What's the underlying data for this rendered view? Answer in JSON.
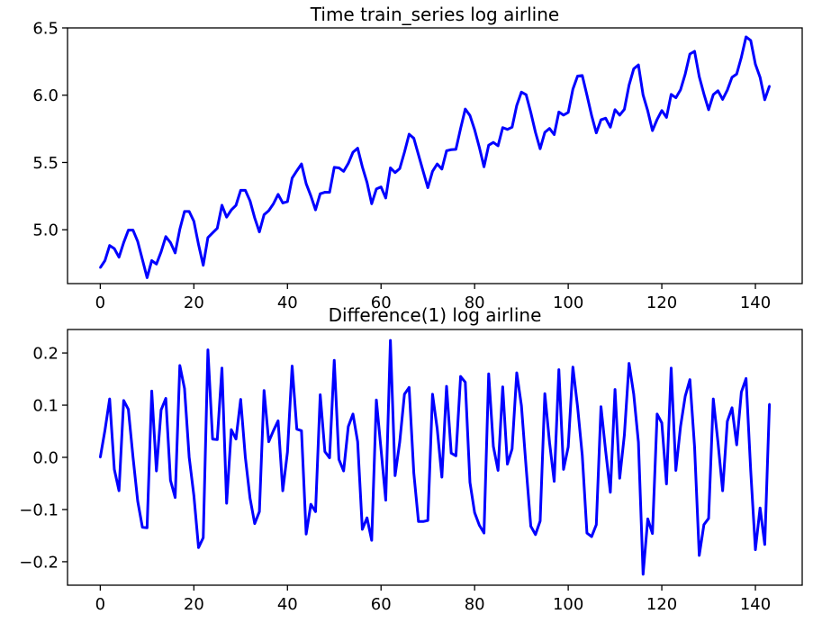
{
  "chart_data": [
    {
      "type": "line",
      "title": "Time train_series log airline",
      "xlabel": "",
      "ylabel": "",
      "xlim": [
        -7,
        150
      ],
      "ylim": [
        4.6,
        6.5
      ],
      "xticks": [
        0,
        20,
        40,
        60,
        80,
        100,
        120,
        140
      ],
      "yticks": [
        5.0,
        5.5,
        6.0,
        6.5
      ],
      "ytick_labels": [
        "5.0",
        "5.5",
        "6.0",
        "6.5"
      ],
      "grid": false,
      "color": "#0000ff",
      "series": [
        {
          "x": [
            0,
            1,
            2,
            3,
            4,
            5,
            6,
            7,
            8,
            9,
            10,
            11,
            12,
            13,
            14,
            15,
            16,
            17,
            18,
            19,
            20,
            21,
            22,
            23,
            24,
            25,
            26,
            27,
            28,
            29,
            30,
            31,
            32,
            33,
            34,
            35,
            36,
            37,
            38,
            39,
            40,
            41,
            42,
            43,
            44,
            45,
            46,
            47,
            48,
            49,
            50,
            51,
            52,
            53,
            54,
            55,
            56,
            57,
            58,
            59,
            60,
            61,
            62,
            63,
            64,
            65,
            66,
            67,
            68,
            69,
            70,
            71,
            72,
            73,
            74,
            75,
            76,
            77,
            78,
            79,
            80,
            81,
            82,
            83,
            84,
            85,
            86,
            87,
            88,
            89,
            90,
            91,
            92,
            93,
            94,
            95,
            96,
            97,
            98,
            99,
            100,
            101,
            102,
            103,
            104,
            105,
            106,
            107,
            108,
            109,
            110,
            111,
            112,
            113,
            114,
            115,
            116,
            117,
            118,
            119,
            120,
            121,
            122,
            123,
            124,
            125,
            126,
            127,
            128,
            129,
            130,
            131,
            132,
            133,
            134,
            135,
            136,
            137,
            138,
            139,
            140,
            141,
            142,
            143
          ],
          "values": [
            4.718,
            4.771,
            4.883,
            4.86,
            4.796,
            4.905,
            4.997,
            4.997,
            4.913,
            4.779,
            4.644,
            4.771,
            4.745,
            4.836,
            4.949,
            4.905,
            4.828,
            5.004,
            5.136,
            5.136,
            5.063,
            4.89,
            4.736,
            4.942,
            4.977,
            5.011,
            5.182,
            5.094,
            5.147,
            5.182,
            5.293,
            5.293,
            5.215,
            5.088,
            4.984,
            5.112,
            5.142,
            5.193,
            5.263,
            5.199,
            5.209,
            5.384,
            5.438,
            5.489,
            5.342,
            5.252,
            5.148,
            5.268,
            5.279,
            5.278,
            5.464,
            5.46,
            5.434,
            5.493,
            5.576,
            5.606,
            5.468,
            5.352,
            5.193,
            5.303,
            5.318,
            5.236,
            5.46,
            5.425,
            5.455,
            5.576,
            5.71,
            5.68,
            5.557,
            5.434,
            5.313,
            5.434,
            5.489,
            5.451,
            5.587,
            5.595,
            5.598,
            5.753,
            5.897,
            5.849,
            5.743,
            5.613,
            5.468,
            5.628,
            5.649,
            5.624,
            5.759,
            5.746,
            5.762,
            5.924,
            6.023,
            6.004,
            5.872,
            5.724,
            5.602,
            5.724,
            5.753,
            5.707,
            5.875,
            5.852,
            5.872,
            6.045,
            6.142,
            6.146,
            6.001,
            5.849,
            5.72,
            5.817,
            5.829,
            5.762,
            5.892,
            5.852,
            5.895,
            6.075,
            6.196,
            6.225,
            6.001,
            5.883,
            5.737,
            5.82,
            5.886,
            5.835,
            6.006,
            5.981,
            6.04,
            6.157,
            6.306,
            6.326,
            6.138,
            6.009,
            5.892,
            6.004,
            6.033,
            5.969,
            6.038,
            6.133,
            6.157,
            6.282,
            6.433,
            6.407,
            6.23,
            6.133,
            5.966,
            6.068
          ]
        }
      ]
    },
    {
      "type": "line",
      "title": "Difference(1) log airline",
      "xlabel": "",
      "ylabel": "",
      "xlim": [
        -7,
        150
      ],
      "ylim": [
        -0.245,
        0.245
      ],
      "xticks": [
        0,
        20,
        40,
        60,
        80,
        100,
        120,
        140
      ],
      "yticks": [
        -0.2,
        -0.1,
        0.0,
        0.1,
        0.2
      ],
      "ytick_labels": [
        "−0.2",
        "−0.1",
        "0.0",
        "0.1",
        "0.2"
      ],
      "grid": false,
      "color": "#0000ff",
      "series": [
        {
          "x": [
            0,
            1,
            2,
            3,
            4,
            5,
            6,
            7,
            8,
            9,
            10,
            11,
            12,
            13,
            14,
            15,
            16,
            17,
            18,
            19,
            20,
            21,
            22,
            23,
            24,
            25,
            26,
            27,
            28,
            29,
            30,
            31,
            32,
            33,
            34,
            35,
            36,
            37,
            38,
            39,
            40,
            41,
            42,
            43,
            44,
            45,
            46,
            47,
            48,
            49,
            50,
            51,
            52,
            53,
            54,
            55,
            56,
            57,
            58,
            59,
            60,
            61,
            62,
            63,
            64,
            65,
            66,
            67,
            68,
            69,
            70,
            71,
            72,
            73,
            74,
            75,
            76,
            77,
            78,
            79,
            80,
            81,
            82,
            83,
            84,
            85,
            86,
            87,
            88,
            89,
            90,
            91,
            92,
            93,
            94,
            95,
            96,
            97,
            98,
            99,
            100,
            101,
            102,
            103,
            104,
            105,
            106,
            107,
            108,
            109,
            110,
            111,
            112,
            113,
            114,
            115,
            116,
            117,
            118,
            119,
            120,
            121,
            122,
            123,
            124,
            125,
            126,
            127,
            128,
            129,
            130,
            131,
            132,
            133,
            134,
            135,
            136,
            137,
            138,
            139,
            140,
            141,
            142,
            143
          ],
          "values": [
            0.0,
            0.052,
            0.112,
            -0.023,
            -0.064,
            0.109,
            0.092,
            0.0,
            -0.084,
            -0.134,
            -0.135,
            0.127,
            -0.026,
            0.091,
            0.113,
            -0.044,
            -0.077,
            0.176,
            0.132,
            0.0,
            -0.073,
            -0.173,
            -0.154,
            0.206,
            0.035,
            0.034,
            0.171,
            -0.088,
            0.053,
            0.035,
            0.111,
            0.0,
            -0.078,
            -0.127,
            -0.104,
            0.128,
            0.03,
            0.051,
            0.07,
            -0.064,
            0.01,
            0.175,
            0.054,
            0.051,
            -0.147,
            -0.09,
            -0.104,
            0.12,
            0.011,
            -0.001,
            0.186,
            -0.004,
            -0.026,
            0.059,
            0.083,
            0.03,
            -0.138,
            -0.116,
            -0.159,
            0.11,
            0.015,
            -0.082,
            0.224,
            -0.035,
            0.03,
            0.121,
            0.134,
            -0.03,
            -0.123,
            -0.123,
            -0.121,
            0.121,
            0.055,
            -0.038,
            0.136,
            0.008,
            0.003,
            0.155,
            0.144,
            -0.048,
            -0.106,
            -0.13,
            -0.145,
            0.16,
            0.021,
            -0.025,
            0.135,
            -0.013,
            0.016,
            0.162,
            0.099,
            -0.019,
            -0.132,
            -0.148,
            -0.122,
            0.122,
            0.029,
            -0.046,
            0.168,
            -0.023,
            0.02,
            0.173,
            0.097,
            0.004,
            -0.145,
            -0.152,
            -0.129,
            0.097,
            0.012,
            -0.067,
            0.13,
            -0.04,
            0.043,
            0.18,
            0.121,
            0.029,
            -0.224,
            -0.118,
            -0.146,
            0.083,
            0.066,
            -0.051,
            0.171,
            -0.025,
            0.059,
            0.117,
            0.149,
            0.02,
            -0.188,
            -0.129,
            -0.117,
            0.112,
            0.029,
            -0.064,
            0.069,
            0.095,
            0.024,
            0.125,
            0.151,
            -0.026,
            -0.177,
            -0.097,
            -0.167,
            0.102
          ]
        }
      ]
    }
  ]
}
